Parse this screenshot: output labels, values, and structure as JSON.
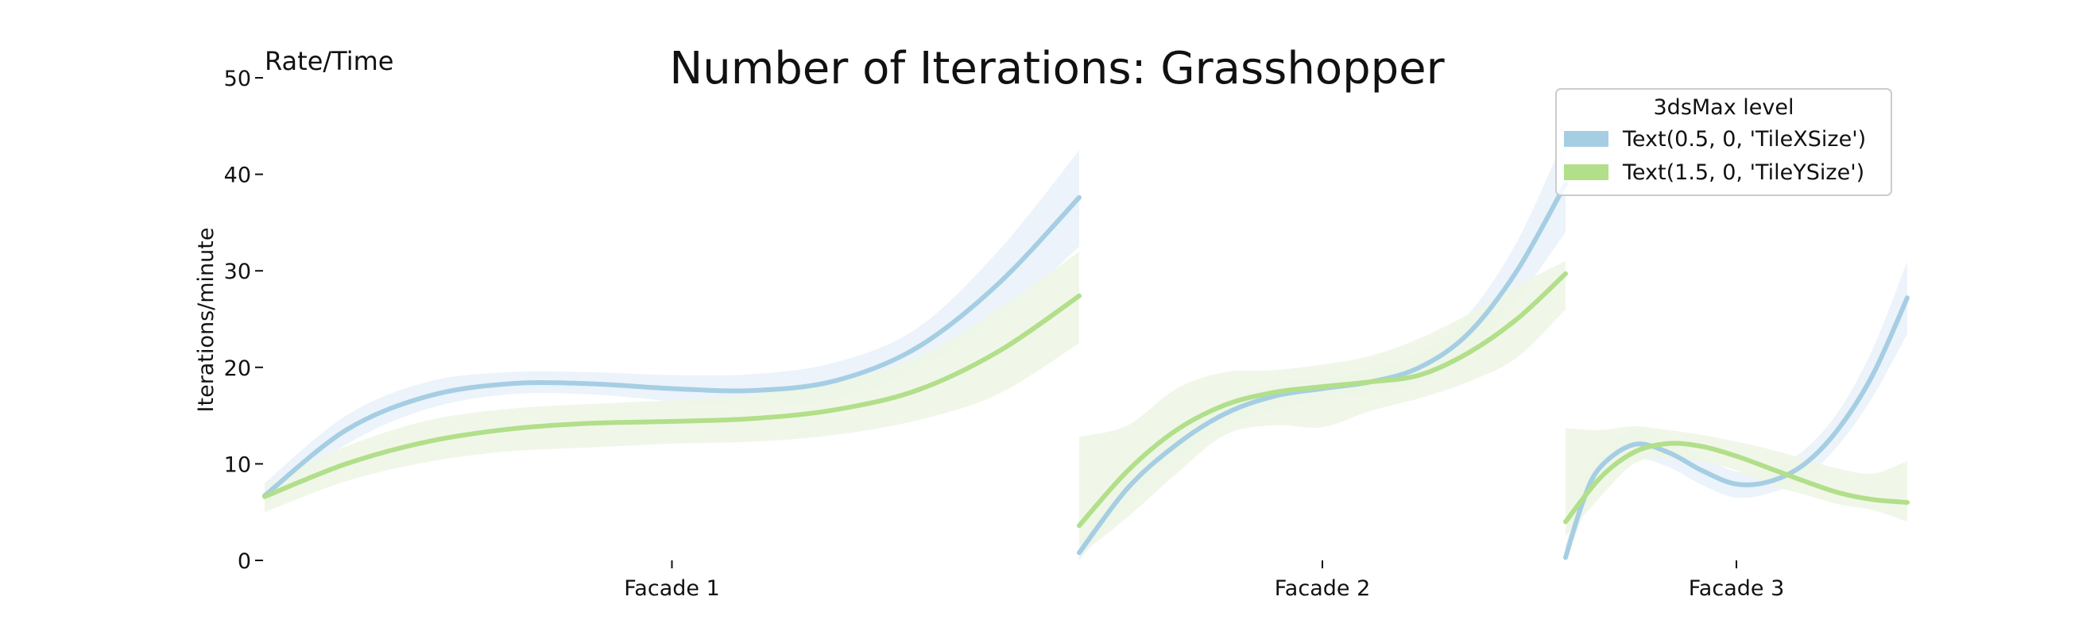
{
  "chart_data": {
    "type": "line",
    "title": "Number of Iterations: Grasshopper",
    "ylabel": "Iterations/minute",
    "corner_label": "Rate/Time",
    "ylim": [
      0,
      50
    ],
    "yticks": [
      0,
      10,
      20,
      30,
      40,
      50
    ],
    "grid": false,
    "legend": {
      "title": "3dsMax level",
      "placement": "top-right",
      "entries": [
        {
          "label": "Text(0.5, 0, 'TileXSize')",
          "color": "#a6cee3"
        },
        {
          "label": "Text(1.5, 0, 'TileYSize')",
          "color": "#b2df8a"
        }
      ]
    },
    "categories": [
      "Facade 1",
      "Facade 2",
      "Facade 3"
    ],
    "panels": [
      {
        "category": "Facade 1",
        "series": [
          {
            "points": [
              [
                0,
                6.7
              ],
              [
                0.1,
                13.5
              ],
              [
                0.2,
                17.0
              ],
              [
                0.3,
                18.3
              ],
              [
                0.4,
                18.3
              ],
              [
                0.5,
                17.8
              ],
              [
                0.6,
                17.6
              ],
              [
                0.7,
                18.6
              ],
              [
                0.8,
                22.0
              ],
              [
                0.9,
                28.6
              ],
              [
                1.0,
                37.6
              ]
            ],
            "upper": [
              8.0,
              15.0,
              18.5,
              19.5,
              19.5,
              19.2,
              19.3,
              20.5,
              24.0,
              32.0,
              42.5
            ],
            "lower": [
              5.5,
              12.0,
              15.7,
              17.2,
              17.2,
              16.5,
              16.0,
              16.7,
              19.8,
              25.0,
              32.5
            ]
          },
          {
            "points": [
              [
                0,
                6.6
              ],
              [
                0.1,
                10.0
              ],
              [
                0.2,
                12.3
              ],
              [
                0.3,
                13.6
              ],
              [
                0.4,
                14.2
              ],
              [
                0.5,
                14.4
              ],
              [
                0.6,
                14.7
              ],
              [
                0.7,
                15.6
              ],
              [
                0.8,
                17.6
              ],
              [
                0.9,
                21.6
              ],
              [
                1.0,
                27.4
              ]
            ],
            "upper": [
              7.8,
              11.8,
              14.5,
              15.7,
              16.2,
              16.6,
              17.2,
              18.5,
              21.0,
              26.0,
              32.0
            ],
            "lower": [
              5.0,
              8.2,
              10.2,
              11.3,
              11.7,
              12.1,
              12.3,
              13.0,
              14.5,
              17.2,
              22.5
            ]
          }
        ]
      },
      {
        "category": "Facade 2",
        "series": [
          {
            "points": [
              [
                0,
                0.8
              ],
              [
                0.1,
                7.5
              ],
              [
                0.2,
                12.0
              ],
              [
                0.3,
                15.2
              ],
              [
                0.4,
                17.0
              ],
              [
                0.5,
                17.8
              ],
              [
                0.6,
                18.5
              ],
              [
                0.7,
                20.0
              ],
              [
                0.8,
                23.5
              ],
              [
                0.9,
                30.0
              ],
              [
                1.0,
                39.0
              ]
            ],
            "upper": [
              2.0,
              9.0,
              13.5,
              16.5,
              18.2,
              19.0,
              19.8,
              21.5,
              25.5,
              33.0,
              44.0
            ],
            "lower": [
              0.0,
              6.0,
              10.5,
              13.8,
              15.6,
              16.6,
              17.2,
              18.5,
              21.5,
              27.0,
              34.0
            ]
          },
          {
            "points": [
              [
                0,
                3.6
              ],
              [
                0.1,
                9.3
              ],
              [
                0.2,
                13.5
              ],
              [
                0.3,
                16.1
              ],
              [
                0.4,
                17.4
              ],
              [
                0.5,
                18.0
              ],
              [
                0.6,
                18.5
              ],
              [
                0.7,
                19.2
              ],
              [
                0.8,
                21.5
              ],
              [
                0.9,
                25.0
              ],
              [
                1.0,
                29.7
              ]
            ],
            "upper": [
              12.8,
              14.0,
              17.8,
              19.5,
              19.7,
              20.3,
              21.2,
              23.0,
              25.5,
              28.5,
              31.0
            ],
            "lower": [
              0.5,
              4.5,
              9.0,
              13.0,
              14.0,
              13.8,
              15.5,
              16.8,
              18.5,
              21.0,
              26.0
            ]
          }
        ]
      },
      {
        "category": "Facade 3",
        "series": [
          {
            "points": [
              [
                0,
                0.3
              ],
              [
                0.05,
                6.0
              ],
              [
                0.1,
                9.6
              ],
              [
                0.2,
                12.0
              ],
              [
                0.3,
                11.2
              ],
              [
                0.4,
                9.3
              ],
              [
                0.5,
                7.9
              ],
              [
                0.6,
                8.2
              ],
              [
                0.7,
                10.0
              ],
              [
                0.8,
                13.7
              ],
              [
                0.9,
                19.3
              ],
              [
                1.0,
                27.2
              ]
            ],
            "upper": [
              1.5,
              7.5,
              11.0,
              13.5,
              12.8,
              10.8,
              9.2,
              9.4,
              11.5,
              15.5,
              22.0,
              31.0
            ],
            "lower": [
              0.0,
              4.5,
              8.2,
              10.5,
              9.7,
              7.8,
              6.5,
              7.0,
              8.6,
              12.0,
              17.0,
              23.5
            ]
          },
          {
            "points": [
              [
                0,
                4.0
              ],
              [
                0.1,
                8.5
              ],
              [
                0.2,
                11.2
              ],
              [
                0.3,
                12.1
              ],
              [
                0.4,
                11.8
              ],
              [
                0.5,
                10.8
              ],
              [
                0.6,
                9.5
              ],
              [
                0.7,
                8.2
              ],
              [
                0.8,
                7.0
              ],
              [
                0.9,
                6.3
              ],
              [
                1.0,
                6.0
              ]
            ],
            "upper": [
              13.7,
              13.5,
              13.9,
              13.5,
              13.0,
              12.3,
              11.5,
              10.5,
              9.5,
              9.0,
              10.3
            ],
            "lower": [
              2.5,
              6.5,
              10.0,
              10.7,
              10.3,
              9.3,
              7.8,
              6.8,
              5.8,
              5.2,
              4.0
            ]
          }
        ]
      }
    ]
  }
}
